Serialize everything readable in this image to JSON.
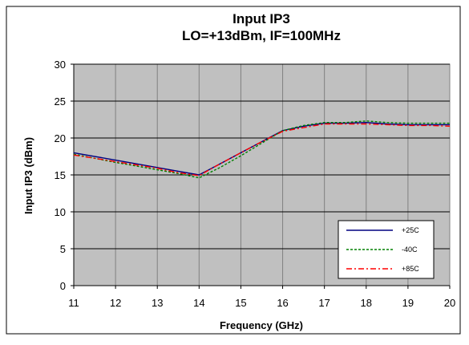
{
  "chart_data": {
    "type": "line",
    "title": "Input IP3",
    "subtitle": "LO=+13dBm, IF=100MHz",
    "xlabel": "Frequency (GHz)",
    "ylabel": "Input IP3 (dBm)",
    "xlim": [
      11,
      20
    ],
    "ylim": [
      0,
      30
    ],
    "xticks": [
      11,
      12,
      13,
      14,
      15,
      16,
      17,
      18,
      19,
      20
    ],
    "yticks": [
      0,
      5,
      10,
      15,
      20,
      25,
      30
    ],
    "grid": true,
    "legend_position": "bottom-right",
    "plot_background": "#c0c0c0",
    "series": [
      {
        "name": "+25C",
        "color": "#000080",
        "dash": "solid",
        "x": [
          11,
          12,
          13,
          13.5,
          14,
          14.5,
          15,
          15.5,
          16,
          16.5,
          17,
          17.5,
          18,
          18.5,
          19,
          19.5,
          20
        ],
        "y": [
          18.0,
          17.0,
          16.0,
          15.5,
          15.0,
          16.5,
          18.0,
          19.5,
          21.0,
          21.6,
          22.0,
          22.0,
          22.1,
          21.9,
          21.8,
          21.8,
          21.8
        ]
      },
      {
        "name": "-40C",
        "color": "#008000",
        "dash": "dashed",
        "x": [
          11,
          12,
          13,
          13.5,
          14,
          14.5,
          15,
          15.5,
          16,
          16.5,
          17,
          17.5,
          18,
          18.5,
          19,
          19.5,
          20
        ],
        "y": [
          17.8,
          16.7,
          15.7,
          15.2,
          14.6,
          16.0,
          17.6,
          19.3,
          21.0,
          21.7,
          22.1,
          22.1,
          22.3,
          22.1,
          22.0,
          22.0,
          22.0
        ]
      },
      {
        "name": "+85C",
        "color": "#ff0000",
        "dash": "dashdot",
        "x": [
          11,
          12,
          13,
          13.5,
          14,
          14.5,
          15,
          15.5,
          16,
          16.5,
          17,
          17.5,
          18,
          18.5,
          19,
          19.5,
          20
        ],
        "y": [
          17.7,
          16.8,
          15.9,
          15.3,
          14.9,
          16.5,
          18.0,
          19.5,
          20.9,
          21.4,
          21.9,
          21.9,
          21.9,
          21.8,
          21.7,
          21.7,
          21.6
        ]
      }
    ]
  }
}
